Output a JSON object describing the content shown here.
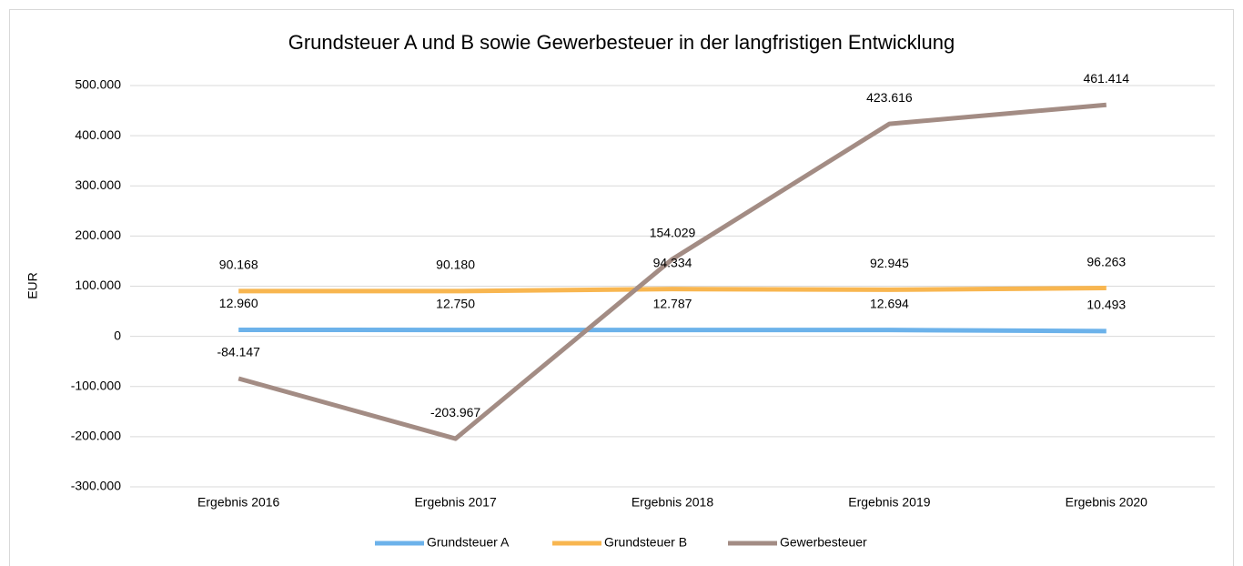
{
  "chart_data": {
    "type": "line",
    "title": "Grundsteuer A und B sowie Gewerbesteuer in der langfristigen Entwicklung",
    "y_label": "EUR",
    "categories": [
      "Ergebnis 2016",
      "Ergebnis 2017",
      "Ergebnis 2018",
      "Ergebnis 2019",
      "Ergebnis 2020"
    ],
    "series": [
      {
        "name": "Grundsteuer A",
        "color": "#6cb2ea",
        "values": [
          12960,
          12750,
          12787,
          12694,
          10493
        ],
        "value_labels": [
          "12.960",
          "12.750",
          "12.787",
          "12.694",
          "10.493"
        ]
      },
      {
        "name": "Grundsteuer B",
        "color": "#f8b650",
        "values": [
          90168,
          90180,
          94334,
          92945,
          96263
        ],
        "value_labels": [
          "90.168",
          "90.180",
          "94.334",
          "92.945",
          "96.263"
        ]
      },
      {
        "name": "Gewerbesteuer",
        "color": "#a38c84",
        "values": [
          -84147,
          -203967,
          154029,
          423616,
          461414
        ],
        "value_labels": [
          "-84.147",
          "-203.967",
          "154.029",
          "423.616",
          "461.414"
        ]
      }
    ],
    "ylim": [
      -300000,
      500000
    ],
    "yticks": [
      {
        "value": -300000,
        "label": "-300.000"
      },
      {
        "value": -200000,
        "label": "-200.000"
      },
      {
        "value": -100000,
        "label": "-100.000"
      },
      0,
      {
        "value": 100000,
        "label": "100.000"
      },
      {
        "value": 200000,
        "label": "200.000"
      },
      {
        "value": 300000,
        "label": "300.000"
      },
      {
        "value": 400000,
        "label": "400.000"
      },
      {
        "value": 500000,
        "label": "500.000"
      }
    ],
    "grid": true,
    "legend": "bottom"
  }
}
